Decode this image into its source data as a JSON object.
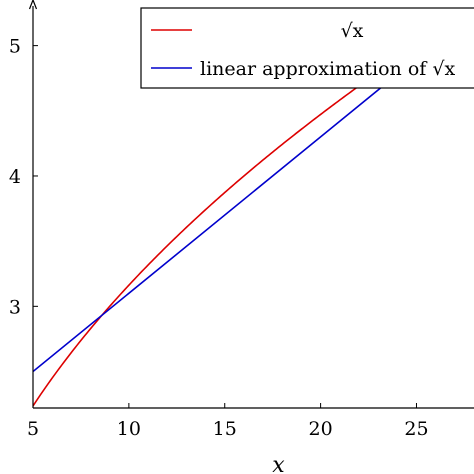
{
  "chart_data": {
    "type": "line",
    "title": "",
    "xlabel": "x",
    "ylabel": "",
    "xlim": [
      5,
      28
    ],
    "ylim": [
      2.22,
      5.35
    ],
    "xticks": [
      5,
      10,
      15,
      20,
      25
    ],
    "yticks": [
      3,
      4,
      5
    ],
    "x_tick_labels": [
      "5",
      "10",
      "15",
      "20",
      "25"
    ],
    "y_tick_labels": [
      "3",
      "4",
      "5"
    ],
    "grid": false,
    "legend_position": "top-right",
    "series": [
      {
        "name": "√x",
        "color": "#dd0000",
        "x": [
          5,
          6,
          7,
          8,
          9,
          10,
          11,
          12,
          13,
          14,
          15,
          16,
          17,
          18,
          19,
          20,
          21,
          22,
          23,
          24,
          25
        ],
        "y": [
          2.236,
          2.449,
          2.646,
          2.828,
          3.0,
          3.162,
          3.317,
          3.464,
          3.606,
          3.742,
          3.873,
          4.0,
          4.123,
          4.243,
          4.359,
          4.472,
          4.583,
          4.69,
          4.796,
          4.899,
          5.0
        ]
      },
      {
        "name": "linear approximation of √x",
        "color": "#0000cc",
        "x": [
          5,
          25
        ],
        "y": [
          2.5,
          4.9
        ]
      }
    ]
  }
}
